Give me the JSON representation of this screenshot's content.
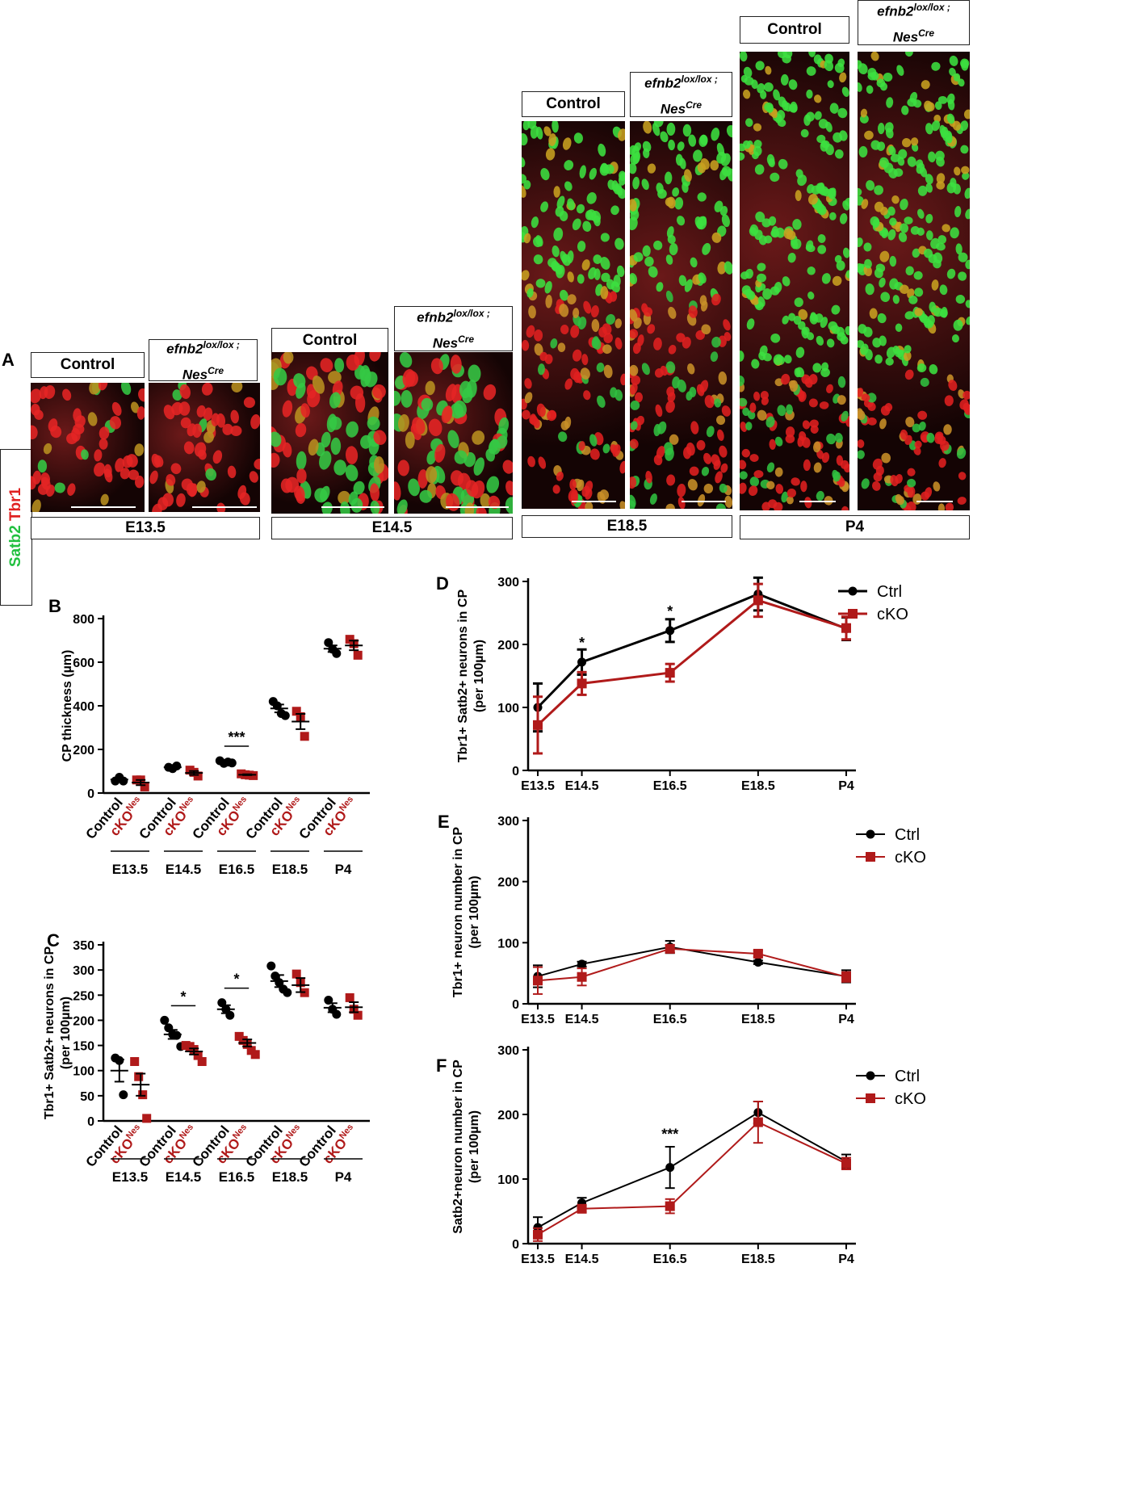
{
  "figure": {
    "panel_a_label": "A",
    "stain": {
      "satb2": "Satb2",
      "tbr1": "Tbr1",
      "satb2_color": "#22c040",
      "tbr1_color": "#e02020"
    },
    "header_control": "Control",
    "header_mutant": {
      "gene": "efnb2",
      "gene_sup": "lox/lox ;",
      "cre": "Nes",
      "cre_sup": "Cre"
    },
    "stages": [
      "E13.5",
      "E14.5",
      "E18.5",
      "P4"
    ],
    "colors": {
      "ctrl": "#000000",
      "cko": "#b01a1a",
      "green": "#22c040",
      "red": "#e02020"
    }
  },
  "chart_data": [
    {
      "id": "B",
      "type": "scatter",
      "panel_label": "B",
      "title": "",
      "ylabel": "CP thickness (µm)",
      "ylim": [
        0,
        800
      ],
      "yticks": [
        0,
        200,
        400,
        600,
        800
      ],
      "groups": [
        {
          "stage": "E13.5",
          "control": {
            "label": "Control",
            "points": [
              55,
              72,
              55
            ],
            "mean": 62,
            "sem": 8
          },
          "cko": {
            "label": "cKO",
            "sup": "Nes",
            "points": [
              60,
              60,
              28
            ],
            "mean": 48,
            "sem": 12
          }
        },
        {
          "stage": "E14.5",
          "control": {
            "label": "Control",
            "points": [
              118,
              112,
              124
            ],
            "mean": 118,
            "sem": 4
          },
          "cko": {
            "label": "cKO",
            "sup": "Nes",
            "points": [
              105,
              95,
              78
            ],
            "mean": 92,
            "sem": 9
          }
        },
        {
          "stage": "E16.5",
          "control": {
            "label": "Control",
            "points": [
              148,
              136,
              142,
              138
            ],
            "mean": 141,
            "sem": 3
          },
          "cko": {
            "label": "cKO",
            "sup": "Nes",
            "points": [
              88,
              84,
              82,
              80
            ],
            "mean": 84,
            "sem": 2
          }
        },
        {
          "stage": "E18.5",
          "control": {
            "label": "Control",
            "points": [
              420,
              400,
              365,
              355
            ],
            "mean": 388,
            "sem": 18
          },
          "cko": {
            "label": "cKO",
            "sup": "Nes",
            "points": [
              375,
              350,
              260
            ],
            "mean": 328,
            "sem": 35
          }
        },
        {
          "stage": "P4",
          "control": {
            "label": "Control",
            "points": [
              690,
              660,
              640
            ],
            "mean": 662,
            "sem": 15
          },
          "cko": {
            "label": "cKO",
            "sup": "Nes",
            "points": [
              705,
              685,
              632
            ],
            "mean": 677,
            "sem": 22
          }
        }
      ],
      "significance": [
        {
          "stage": "E16.5",
          "label": "***"
        }
      ]
    },
    {
      "id": "C",
      "type": "scatter",
      "panel_label": "C",
      "ylabel": "Tbr1+ Satb2+ neurons in CP",
      "ylabel2": "(per 100µm)",
      "ylim": [
        0,
        350
      ],
      "yticks": [
        0,
        50,
        100,
        150,
        200,
        250,
        300,
        350
      ],
      "groups": [
        {
          "stage": "E13.5",
          "control": {
            "label": "Control",
            "points": [
              125,
              120,
              52
            ],
            "mean": 100,
            "sem": 22
          },
          "cko": {
            "label": "cKO",
            "sup": "Nes",
            "points": [
              118,
              88,
              52,
              5
            ],
            "mean": 72,
            "sem": 22
          }
        },
        {
          "stage": "E14.5",
          "control": {
            "label": "Control",
            "points": [
              200,
              185,
              172,
              170,
              148
            ],
            "mean": 172,
            "sem": 9
          },
          "cko": {
            "label": "cKO",
            "sup": "Nes",
            "points": [
              150,
              148,
              142,
              130,
              118
            ],
            "mean": 138,
            "sem": 6
          }
        },
        {
          "stage": "E16.5",
          "control": {
            "label": "Control",
            "points": [
              235,
              222,
              210
            ],
            "mean": 222,
            "sem": 8
          },
          "cko": {
            "label": "cKO",
            "sup": "Nes",
            "points": [
              168,
              160,
              152,
              140,
              132
            ],
            "mean": 155,
            "sem": 7
          }
        },
        {
          "stage": "E18.5",
          "control": {
            "label": "Control",
            "points": [
              308,
              288,
              275,
              262,
              255
            ],
            "mean": 278,
            "sem": 12
          },
          "cko": {
            "label": "cKO",
            "sup": "Nes",
            "points": [
              292,
              275,
              255
            ],
            "mean": 270,
            "sem": 14
          }
        },
        {
          "stage": "P4",
          "control": {
            "label": "Control",
            "points": [
              240,
              222,
              212
            ],
            "mean": 225,
            "sem": 9
          },
          "cko": {
            "label": "cKO",
            "sup": "Nes",
            "points": [
              245,
              222,
              210
            ],
            "mean": 226,
            "sem": 10
          }
        }
      ],
      "significance": [
        {
          "stage": "E14.5",
          "label": "*"
        },
        {
          "stage": "E16.5",
          "label": "*"
        }
      ]
    },
    {
      "id": "D",
      "type": "line",
      "panel_label": "D",
      "ylabel": "Tbr1+ Satb2+ neurons in CP",
      "ylabel2": "(per 100µm)",
      "ylim": [
        0,
        300
      ],
      "yticks": [
        0,
        100,
        200,
        300
      ],
      "x": [
        "E13.5",
        "E14.5",
        "E16.5",
        "E18.5",
        "P4"
      ],
      "x_values": [
        13.5,
        14.5,
        16.5,
        18.5,
        20.5
      ],
      "series": [
        {
          "name": "Ctrl",
          "values": [
            100,
            172,
            222,
            280,
            225
          ],
          "err": [
            38,
            20,
            18,
            26,
            18
          ]
        },
        {
          "name": "cKO",
          "values": [
            72,
            138,
            155,
            270,
            226
          ],
          "err": [
            45,
            18,
            14,
            26,
            18
          ]
        }
      ],
      "annotations": [
        {
          "x": "E14.5",
          "y": 195,
          "label": "*"
        },
        {
          "x": "E16.5",
          "y": 245,
          "label": "*"
        }
      ]
    },
    {
      "id": "E",
      "type": "line",
      "panel_label": "E",
      "ylabel": "Tbr1+ neuron number in CP",
      "ylabel2": "(per 100µm)",
      "ylim": [
        0,
        300
      ],
      "yticks": [
        0,
        100,
        200,
        300
      ],
      "x": [
        "E13.5",
        "E14.5",
        "E16.5",
        "E18.5",
        "P4"
      ],
      "x_values": [
        13.5,
        14.5,
        16.5,
        18.5,
        20.5
      ],
      "series": [
        {
          "name": "Ctrl",
          "values": [
            45,
            65,
            93,
            68,
            45
          ],
          "err": [
            18,
            4,
            10,
            3,
            10
          ]
        },
        {
          "name": "cKO",
          "values": [
            38,
            44,
            90,
            82,
            44
          ],
          "err": [
            22,
            14,
            6,
            5,
            8
          ]
        }
      ],
      "annotations": []
    },
    {
      "id": "F",
      "type": "line",
      "panel_label": "F",
      "ylabel": "Satb2+neuron number in CP",
      "ylabel2": "(per 100µm)",
      "ylim": [
        0,
        300
      ],
      "yticks": [
        0,
        100,
        200,
        300
      ],
      "x": [
        "E13.5",
        "E14.5",
        "E16.5",
        "E18.5",
        "P4"
      ],
      "x_values": [
        13.5,
        14.5,
        16.5,
        18.5,
        20.5
      ],
      "series": [
        {
          "name": "Ctrl",
          "values": [
            25,
            63,
            118,
            203,
            127
          ],
          "err": [
            16,
            8,
            32,
            17,
            11
          ]
        },
        {
          "name": "cKO",
          "values": [
            14,
            54,
            58,
            188,
            124
          ],
          "err": [
            10,
            5,
            11,
            32,
            9
          ]
        }
      ],
      "annotations": [
        {
          "x": "E16.5",
          "y": 162,
          "label": "***"
        }
      ]
    }
  ]
}
